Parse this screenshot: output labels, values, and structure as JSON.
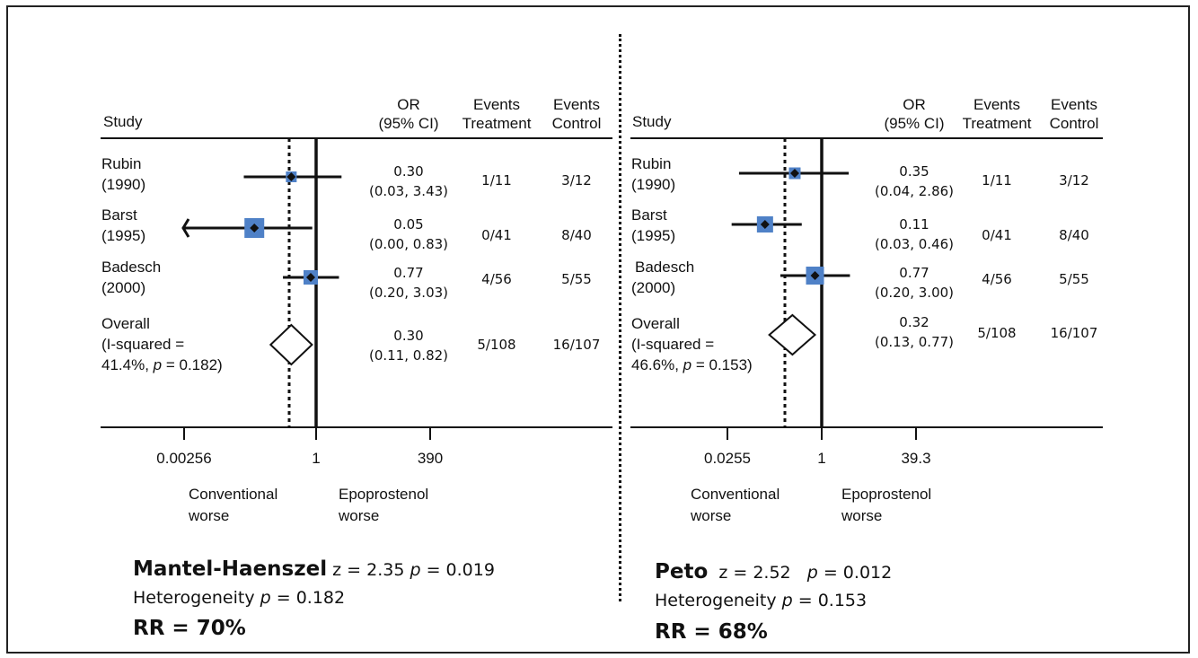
{
  "panels": [
    {
      "headers": {
        "study": "Study",
        "or": "OR",
        "or_ci": "(95% CI)",
        "events1": "Events",
        "treatment": "Treatment",
        "events2": "Events",
        "control": "Control"
      },
      "studies": [
        {
          "name": "Rubin",
          "year": "(1990)",
          "or": "0.30",
          "ci": "(0.03, 3.43)",
          "treat": "1/11",
          "ctrl": "3/12"
        },
        {
          "name": "Barst",
          "year": "(1995)",
          "or": "0.05",
          "ci": "(0.00, 0.83)",
          "treat": "0/41",
          "ctrl": "8/40"
        },
        {
          "name": "Badesch",
          "year": "(2000)",
          "or": "0.77",
          "ci": "(0.20, 3.03)",
          "treat": "4/56",
          "ctrl": "5/55"
        }
      ],
      "overall": {
        "line1": "Overall",
        "line2": "(I-squared =",
        "line3a": "41.4%, ",
        "line3p": "p",
        "line3b": " = 0.182)",
        "or": "0.30",
        "ci": "(0.11, 0.82)",
        "treat": "5/108",
        "ctrl": "16/107"
      },
      "ticks": [
        "0.00256",
        "1",
        "390"
      ],
      "left_label1": "Conventional",
      "left_label2": "worse",
      "right_label1": "Epoprostenol",
      "right_label2": "worse",
      "method": "Mantel-Haenszel",
      "z_text": " z = 2.35 ",
      "p_label": "p",
      "p_text": " = 0.019",
      "het_text": "Heterogeneity ",
      "het_p": "p",
      "het_val": " = 0.182",
      "rr": "RR = 70%"
    },
    {
      "headers": {
        "study": "Study",
        "or": "OR",
        "or_ci": "(95% CI)",
        "events1": "Events",
        "treatment": "Treatment",
        "events2": "Events",
        "control": "Control"
      },
      "studies": [
        {
          "name": "Rubin",
          "year": "(1990)",
          "or": "0.35",
          "ci": "(0.04, 2.86)",
          "treat": "1/11",
          "ctrl": "3/12"
        },
        {
          "name": "Barst",
          "year": "(1995)",
          "or": "0.11",
          "ci": "(0.03, 0.46)",
          "treat": "0/41",
          "ctrl": "8/40"
        },
        {
          "name": "Badesch",
          "year": "(2000)",
          "or": "0.77",
          "ci": "(0.20, 3.00)",
          "treat": "4/56",
          "ctrl": "5/55"
        }
      ],
      "overall": {
        "line1": "Overall",
        "line2": "(I-squared =",
        "line3a": "46.6%, ",
        "line3p": "p",
        "line3b": " = 0.153)",
        "or": "0.32",
        "ci": "(0.13, 0.77)",
        "treat": "5/108",
        "ctrl": "16/107"
      },
      "ticks": [
        "0.0255",
        "1",
        "39.3"
      ],
      "left_label1": "Conventional",
      "left_label2": "worse",
      "right_label1": "Epoprostenol",
      "right_label2": "worse",
      "method": "Peto",
      "z_text": "  z = 2.52   ",
      "p_label": "p",
      "p_text": " = 0.012",
      "het_text": "Heterogeneity ",
      "het_p": "p",
      "het_val": " = 0.153",
      "rr": "RR = 68%"
    }
  ],
  "chart_data": [
    {
      "type": "forest",
      "method": "Mantel-Haenszel",
      "x_scale": "log",
      "x_ticks": [
        0.00256,
        1,
        390
      ],
      "null_line": 1,
      "studies": [
        {
          "name": "Rubin (1990)",
          "or": 0.3,
          "lower": 0.03,
          "upper": 3.43
        },
        {
          "name": "Barst (1995)",
          "or": 0.05,
          "lower": 0.0,
          "upper": 0.83
        },
        {
          "name": "Badesch (2000)",
          "or": 0.77,
          "lower": 0.2,
          "upper": 3.03
        }
      ],
      "overall": {
        "or": 0.3,
        "lower": 0.11,
        "upper": 0.82
      }
    },
    {
      "type": "forest",
      "method": "Peto",
      "x_scale": "log",
      "x_ticks": [
        0.0255,
        1,
        39.3
      ],
      "null_line": 1,
      "studies": [
        {
          "name": "Rubin (1990)",
          "or": 0.35,
          "lower": 0.04,
          "upper": 2.86
        },
        {
          "name": "Barst (1995)",
          "or": 0.11,
          "lower": 0.03,
          "upper": 0.46
        },
        {
          "name": "Badesch (2000)",
          "or": 0.77,
          "lower": 0.2,
          "upper": 3.0
        }
      ],
      "overall": {
        "or": 0.32,
        "lower": 0.13,
        "upper": 0.77
      }
    }
  ]
}
